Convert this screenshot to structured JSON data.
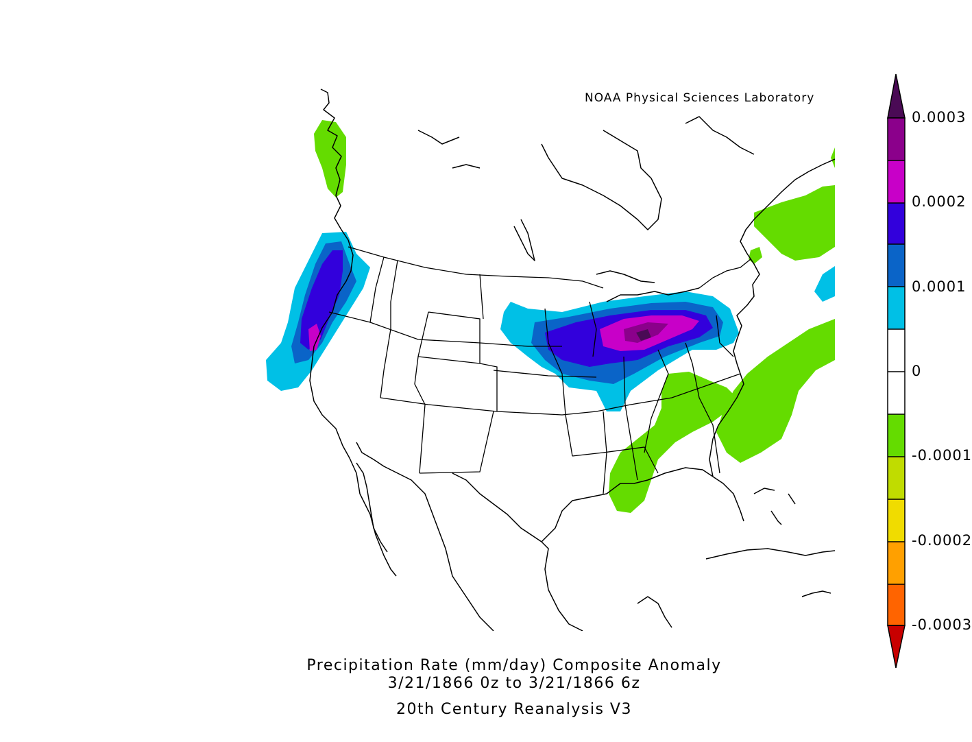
{
  "credit": "NOAA Physical Sciences Laboratory",
  "title": {
    "line1": "Precipitation Rate (mm/day)   Composite Anomaly",
    "line2": "3/21/1866 0z  to 3/21/1866 6z",
    "dataset": "20th Century Reanalysis V3"
  },
  "colorbar": {
    "labels": [
      {
        "text": "0.0003",
        "level": 10
      },
      {
        "text": "0.0002",
        "level": 8
      },
      {
        "text": "0.0001",
        "level": 6
      },
      {
        "text": "0",
        "level": 4
      },
      {
        "text": "-0.0001",
        "level": 2
      },
      {
        "text": "-0.0002",
        "level": 0
      },
      {
        "text": "-0.0003",
        "level": -2
      }
    ],
    "colors_top_to_bottom": [
      "#4a0a55",
      "#8b008b",
      "#c800c8",
      "#3200dc",
      "#0a64c8",
      "#00c0e6",
      "#ffffff",
      "#ffffff",
      "#64dc00",
      "#c0dc00",
      "#f0dc00",
      "#ffa000",
      "#ff6400",
      "#c80000"
    ]
  }
}
